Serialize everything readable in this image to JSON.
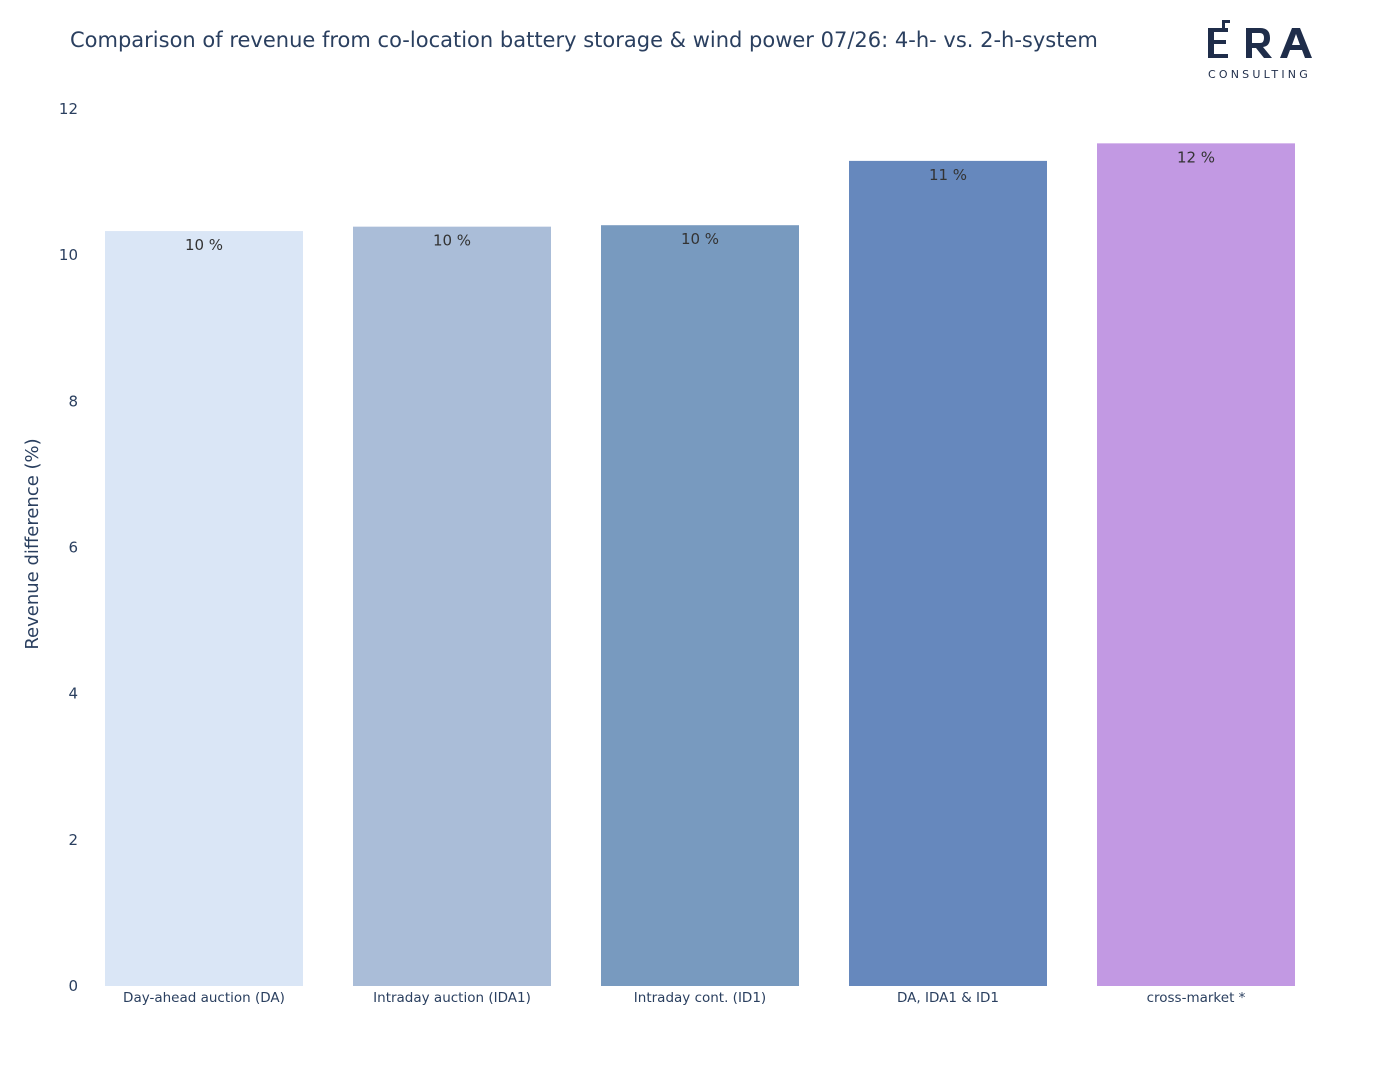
{
  "title": "Comparison of revenue from co-location battery storage & wind power 07/26: 4-h- vs. 2-h-system",
  "logo": {
    "text": "ERA",
    "subtext": "CONSULTING",
    "color": "#1f2d4a"
  },
  "chart_data": {
    "type": "bar",
    "categories": [
      "Day-ahead auction (DA)",
      "Intraday auction (IDA1)",
      "Intraday cont. (ID1)",
      "DA, IDA1 & ID1",
      "cross-market *"
    ],
    "values": [
      10.33,
      10.39,
      10.41,
      11.29,
      11.53
    ],
    "data_labels": [
      "10 %",
      "10 %",
      "10 %",
      "11 %",
      "12 %"
    ],
    "colors": [
      "#dae6f6",
      "#aabdd8",
      "#789abf",
      "#6688bd",
      "#c299e3"
    ],
    "ylabel": "Revenue difference (%)",
    "xlabel": "",
    "ylim": [
      0,
      12
    ],
    "yticks": [
      0,
      2,
      4,
      6,
      8,
      10,
      12
    ],
    "grid": false,
    "legend": "none"
  }
}
